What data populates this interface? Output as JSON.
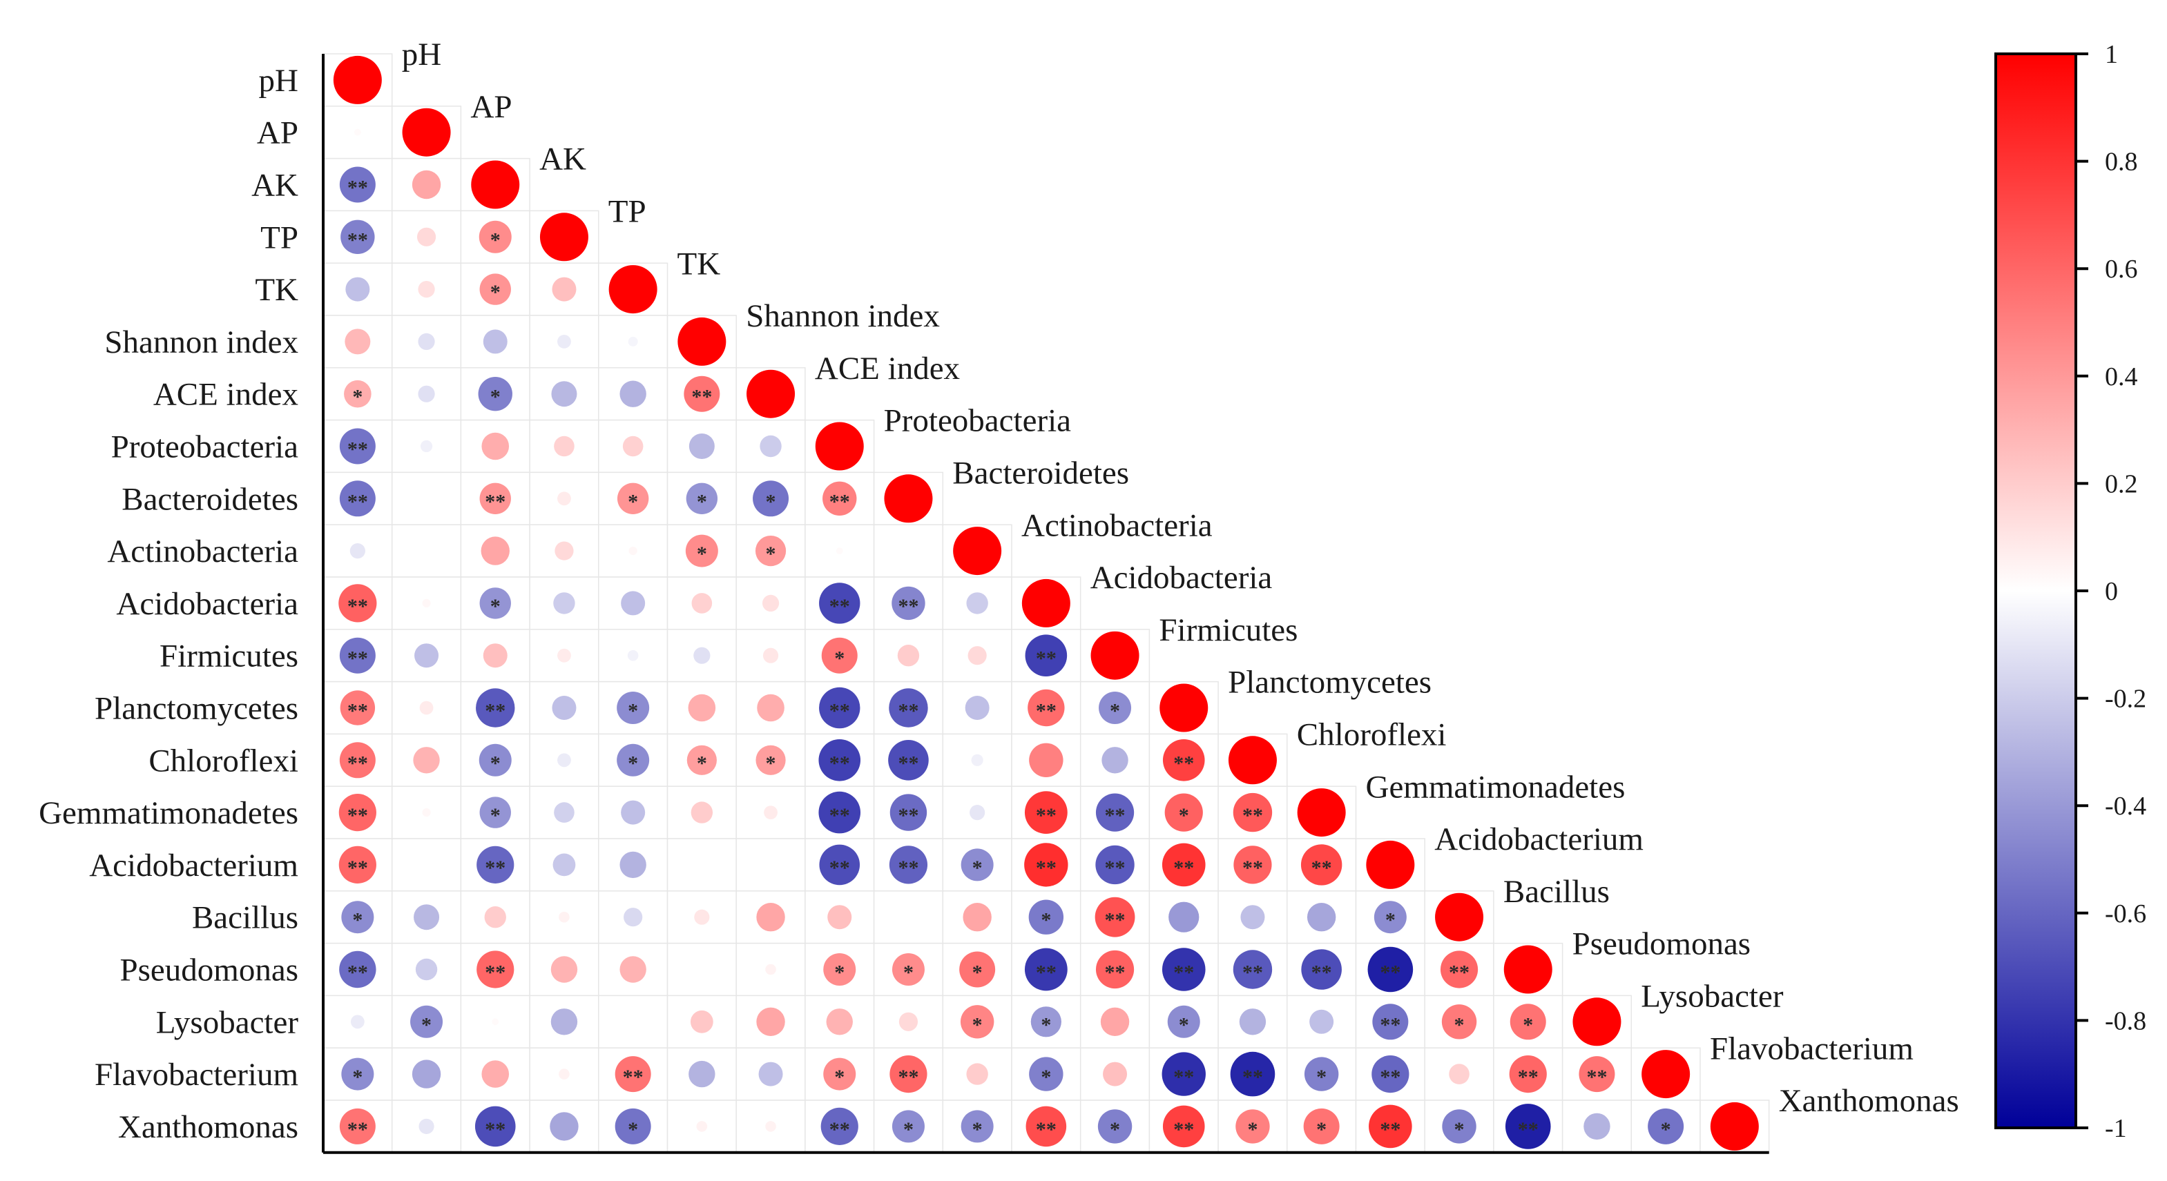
{
  "chart_data": {
    "type": "heatmap",
    "subtype": "lower-triangular correlation matrix (circle glyphs)",
    "variables": [
      "pH",
      "AP",
      "AK",
      "TP",
      "TK",
      "Shannon index",
      "ACE index",
      "Proteobacteria",
      "Bacteroidetes",
      "Actinobacteria",
      "Acidobacteria",
      "Firmicutes",
      "Planctomycetes",
      "Chloroflexi",
      "Gemmatimonadetes",
      "Acidobacterium",
      "Bacillus",
      "Pseudomonas",
      "Lysobacter",
      "Flavobacterium",
      "Xanthomonas"
    ],
    "row_labels": [
      "pH",
      "AP",
      "AK",
      "TP",
      "TK",
      "Shannon index",
      "ACE index",
      "Proteobacteria",
      "Bacteroidetes",
      "Actinobacteria",
      "Acidobacteria",
      "Firmicutes",
      "Planctomycetes",
      "Chloroflexi",
      "Gemmatimonadetes",
      "Acidobacterium",
      "Bacillus",
      "Pseudomonas",
      "Lysobacter",
      "Flavobacterium",
      "Xanthomonas"
    ],
    "correlations": [
      [
        1
      ],
      [
        0.02,
        1
      ],
      [
        -0.55,
        0.35,
        1
      ],
      [
        -0.5,
        0.15,
        0.45,
        1
      ],
      [
        -0.25,
        0.12,
        0.42,
        0.25,
        1
      ],
      [
        0.28,
        -0.12,
        -0.25,
        -0.08,
        -0.04,
        1
      ],
      [
        0.32,
        -0.12,
        -0.5,
        -0.28,
        -0.3,
        0.55,
        1
      ],
      [
        -0.55,
        -0.06,
        0.32,
        0.18,
        0.18,
        -0.28,
        -0.2,
        1
      ],
      [
        -0.55,
        0,
        0.42,
        0.08,
        0.42,
        -0.42,
        -0.55,
        0.5,
        1
      ],
      [
        -0.1,
        0,
        0.35,
        0.15,
        0.03,
        0.45,
        0.4,
        0.02,
        0,
        1
      ],
      [
        0.62,
        0.03,
        -0.42,
        -0.2,
        -0.25,
        0.18,
        0.12,
        -0.72,
        -0.48,
        -0.2,
        1
      ],
      [
        -0.55,
        -0.25,
        0.25,
        0.08,
        -0.05,
        -0.12,
        0.1,
        0.55,
        0.2,
        0.15,
        -0.75,
        1
      ],
      [
        0.52,
        0.08,
        -0.65,
        -0.25,
        -0.45,
        0.32,
        0.32,
        -0.72,
        -0.65,
        -0.25,
        0.58,
        -0.45,
        1
      ],
      [
        0.55,
        0.3,
        -0.45,
        -0.08,
        -0.45,
        0.38,
        0.38,
        -0.75,
        -0.7,
        -0.06,
        0.5,
        -0.3,
        0.75,
        1
      ],
      [
        0.6,
        0.03,
        -0.42,
        -0.18,
        -0.25,
        0.2,
        0.08,
        -0.75,
        -0.58,
        -0.1,
        0.78,
        -0.62,
        0.62,
        0.65,
        1
      ],
      [
        0.6,
        0,
        -0.6,
        -0.22,
        -0.3,
        0,
        0,
        -0.7,
        -0.62,
        -0.45,
        0.82,
        -0.65,
        0.8,
        0.62,
        0.72,
        1
      ],
      [
        -0.45,
        -0.28,
        0.2,
        0.05,
        -0.15,
        0.1,
        0.35,
        0.25,
        0,
        0.35,
        -0.52,
        0.68,
        -0.4,
        -0.25,
        -0.35,
        -0.45,
        1
      ],
      [
        -0.58,
        -0.2,
        0.6,
        0.3,
        0.3,
        0,
        0.05,
        0.45,
        0.45,
        0.55,
        -0.78,
        0.62,
        -0.8,
        -0.65,
        -0.7,
        -0.88,
        0.6,
        1
      ],
      [
        -0.08,
        -0.45,
        0.02,
        -0.3,
        0,
        0.22,
        0.35,
        0.3,
        0.15,
        0.48,
        -0.4,
        0.35,
        -0.45,
        -0.3,
        -0.25,
        -0.55,
        0.52,
        0.55,
        1
      ],
      [
        -0.45,
        -0.35,
        0.32,
        0.05,
        0.55,
        -0.3,
        -0.25,
        0.45,
        0.6,
        0.2,
        -0.5,
        0.25,
        -0.82,
        -0.85,
        -0.5,
        -0.6,
        0.18,
        0.6,
        0.55,
        1
      ],
      [
        0.55,
        -0.1,
        -0.7,
        -0.35,
        -0.55,
        0.05,
        0.05,
        -0.6,
        -0.45,
        -0.45,
        0.7,
        -0.5,
        0.75,
        0.5,
        0.55,
        0.8,
        -0.5,
        -0.88,
        -0.3,
        -0.55,
        1
      ]
    ],
    "significance": [
      [
        ""
      ],
      [
        "",
        ""
      ],
      [
        "**",
        "",
        ""
      ],
      [
        "**",
        "",
        "*",
        ""
      ],
      [
        "",
        "",
        "*",
        "",
        ""
      ],
      [
        "",
        "",
        "",
        "",
        "",
        ""
      ],
      [
        "*",
        "",
        "*",
        "",
        "",
        "**",
        ""
      ],
      [
        "**",
        "",
        "",
        "",
        "",
        "",
        "",
        ""
      ],
      [
        "**",
        "",
        "**",
        "",
        "*",
        "*",
        "*",
        "**",
        ""
      ],
      [
        "",
        "",
        "",
        "",
        "",
        "*",
        "*",
        "",
        "",
        ""
      ],
      [
        "**",
        "",
        "*",
        "",
        "",
        "",
        "",
        "**",
        "**",
        "",
        ""
      ],
      [
        "**",
        "",
        "",
        "",
        "",
        "",
        "",
        "*",
        "",
        "",
        "**",
        ""
      ],
      [
        "**",
        "",
        "**",
        "",
        "*",
        "",
        "",
        "**",
        "**",
        "",
        "**",
        "*",
        ""
      ],
      [
        "**",
        "",
        "*",
        "",
        "*",
        "*",
        "*",
        "**",
        "**",
        "",
        "",
        "",
        "**",
        ""
      ],
      [
        "**",
        "",
        "*",
        "",
        "",
        "",
        "",
        "**",
        "**",
        "",
        "**",
        "**",
        "*",
        "**",
        ""
      ],
      [
        "**",
        "",
        "**",
        "",
        "",
        "",
        "",
        "**",
        "**",
        "*",
        "**",
        "**",
        "**",
        "**",
        "**",
        ""
      ],
      [
        "*",
        "",
        "",
        "",
        "",
        "",
        "",
        "",
        "",
        "",
        "*",
        "**",
        "",
        "",
        "",
        "*",
        ""
      ],
      [
        "**",
        "",
        "**",
        "",
        "",
        "",
        "",
        "*",
        "*",
        "*",
        "**",
        "**",
        "**",
        "**",
        "**",
        "**",
        "**",
        ""
      ],
      [
        "",
        "*",
        "",
        "",
        "",
        "",
        "",
        "",
        "",
        "*",
        "*",
        "",
        "*",
        "",
        "",
        "**",
        "*",
        "*",
        ""
      ],
      [
        "*",
        "",
        "",
        "",
        "**",
        "",
        "",
        "*",
        "**",
        "",
        "*",
        "",
        "**",
        "**",
        "*",
        "**",
        "",
        "**",
        "**",
        ""
      ],
      [
        "**",
        "",
        "**",
        "",
        "*",
        "",
        "",
        "**",
        "*",
        "*",
        "**",
        "*",
        "**",
        "*",
        "*",
        "**",
        "*",
        "**",
        "",
        "*",
        ""
      ]
    ],
    "colorbar": {
      "ticks": [
        "1",
        "0.8",
        "0.6",
        "0.4",
        "0.2",
        "0",
        "-0.2",
        "-0.4",
        "-0.6",
        "-0.8",
        "-1"
      ],
      "range": [
        -1,
        1
      ],
      "low_color": "#000099",
      "mid_color": "#ffffff",
      "high_color": "#ff0000"
    }
  }
}
